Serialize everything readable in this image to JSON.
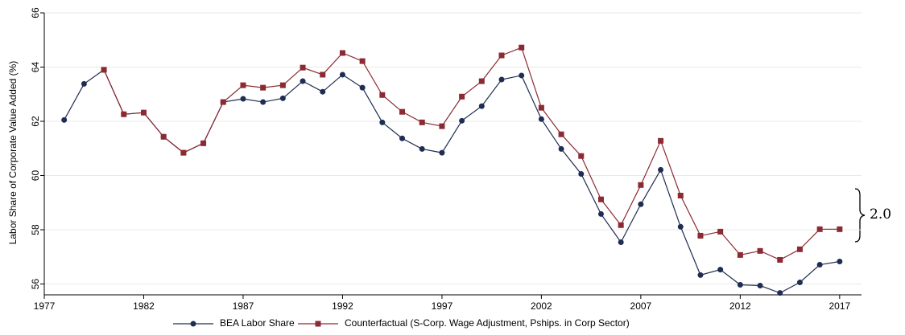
{
  "chart_data": {
    "type": "line",
    "y_label": "Labor Share of Corporate Value Added (%)",
    "annotation": "2.0",
    "x": [
      1978,
      1979,
      1980,
      1981,
      1982,
      1983,
      1984,
      1985,
      1986,
      1987,
      1988,
      1989,
      1990,
      1991,
      1992,
      1993,
      1994,
      1995,
      1996,
      1997,
      1998,
      1999,
      2000,
      2001,
      2002,
      2003,
      2004,
      2005,
      2006,
      2007,
      2008,
      2009,
      2010,
      2011,
      2012,
      2013,
      2014,
      2015,
      2016,
      2017
    ],
    "series": [
      {
        "name": "BEA Labor Share",
        "color": "#1f2d52",
        "marker": "circle",
        "values": [
          62.05,
          63.38,
          63.9,
          62.26,
          62.32,
          61.43,
          60.84,
          61.19,
          62.71,
          62.83,
          62.71,
          62.85,
          63.48,
          63.09,
          63.72,
          63.24,
          61.96,
          61.37,
          60.98,
          60.84,
          62.02,
          62.56,
          63.54,
          63.69,
          62.08,
          60.98,
          60.06,
          58.58,
          57.54,
          58.94,
          60.21,
          58.11,
          56.33,
          56.53,
          55.97,
          55.94,
          55.67,
          56.06,
          56.71,
          56.83
        ]
      },
      {
        "name": "Counterfactual (S-Corp. Wage Adjustment, Pships. in Corp Sector)",
        "color": "#8c2a33",
        "marker": "square",
        "values": [
          null,
          null,
          63.9,
          62.26,
          62.32,
          61.43,
          60.84,
          61.19,
          62.71,
          63.33,
          63.24,
          63.33,
          63.98,
          63.72,
          64.52,
          64.22,
          62.97,
          62.35,
          61.96,
          61.82,
          62.91,
          63.48,
          64.43,
          64.72,
          62.5,
          61.52,
          60.72,
          59.12,
          58.17,
          59.65,
          61.28,
          59.26,
          57.78,
          57.93,
          57.07,
          57.22,
          56.89,
          57.28,
          58.02,
          58.02
        ]
      }
    ],
    "xlim": [
      1977,
      2018.1
    ],
    "xticks": [
      1977,
      1982,
      1987,
      1992,
      1997,
      2002,
      2007,
      2012,
      2017
    ],
    "ylim": [
      55.6,
      66
    ],
    "yticks": [
      56,
      58,
      60,
      62,
      64,
      66
    ],
    "grid": true
  }
}
